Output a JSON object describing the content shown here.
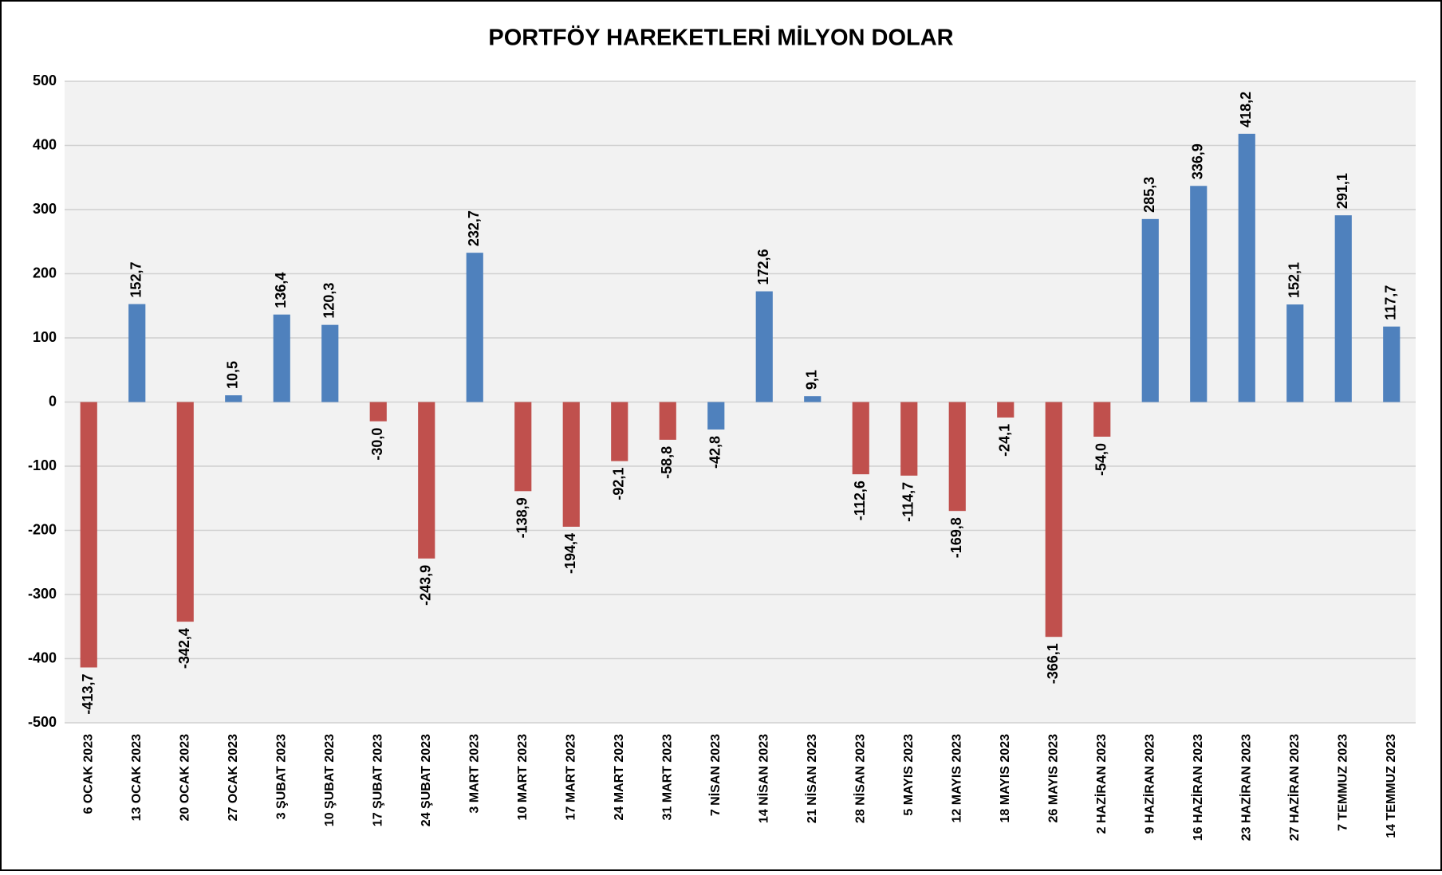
{
  "chart_data": {
    "type": "bar",
    "title": "PORTFÖY HAREKETLERİ MİLYON DOLAR",
    "categories": [
      "6 OCAK 2023",
      "13 OCAK 2023",
      "20 OCAK 2023",
      "27 OCAK 2023",
      "3 ŞUBAT 2023",
      "10 ŞUBAT 2023",
      "17 ŞUBAT 2023",
      "24 ŞUBAT 2023",
      "3 MART 2023",
      "10 MART 2023",
      "17 MART 2023",
      "24 MART 2023",
      "31 MART 2023",
      "7 NİSAN 2023",
      "14 NİSAN 2023",
      "21 NİSAN 2023",
      "28 NİSAN 2023",
      "5 MAYIS 2023",
      "12 MAYIS 2023",
      "18 MAYIS 2023",
      "26 MAYIS 2023",
      "2 HAZİRAN 2023",
      "9 HAZİRAN 2023",
      "16 HAZİRAN 2023",
      "23 HAZİRAN 2023",
      "27 HAZİRAN 2023",
      "7 TEMMUZ 2023",
      "14 TEMMUZ 2023"
    ],
    "values": [
      -413.7,
      152.7,
      -342.4,
      10.5,
      136.4,
      120.3,
      -30.0,
      -243.9,
      232.7,
      -138.9,
      -194.4,
      -92.1,
      -58.8,
      -42.8,
      172.6,
      9.1,
      -112.6,
      -114.7,
      -169.8,
      -24.1,
      -366.1,
      -54.0,
      285.3,
      336.9,
      418.2,
      152.1,
      291.1,
      117.7
    ],
    "value_labels": [
      "-413,7",
      "152,7",
      "-342,4",
      "10,5",
      "136,4",
      "120,3",
      "-30,0",
      "-243,9",
      "232,7",
      "-138,9",
      "-194,4",
      "-92,1",
      "-58,8",
      "-42,8",
      "172,6",
      "9,1",
      "-112,6",
      "-114,7",
      "-169,8",
      "-24,1",
      "-366,1",
      "-54,0",
      "285,3",
      "336,9",
      "418,2",
      "152,1",
      "291,1",
      "117,7"
    ],
    "colors": [
      "#c0504d",
      "#4f81bd",
      "#c0504d",
      "#4f81bd",
      "#4f81bd",
      "#4f81bd",
      "#c0504d",
      "#c0504d",
      "#4f81bd",
      "#c0504d",
      "#c0504d",
      "#c0504d",
      "#c0504d",
      "#4f81bd",
      "#4f81bd",
      "#4f81bd",
      "#c0504d",
      "#c0504d",
      "#c0504d",
      "#c0504d",
      "#c0504d",
      "#c0504d",
      "#4f81bd",
      "#4f81bd",
      "#4f81bd",
      "#4f81bd",
      "#4f81bd",
      "#4f81bd"
    ],
    "ylim": [
      -500,
      500
    ],
    "yticks": [
      -500,
      -400,
      -300,
      -200,
      -100,
      0,
      100,
      200,
      300,
      400,
      500
    ],
    "grid": true
  }
}
